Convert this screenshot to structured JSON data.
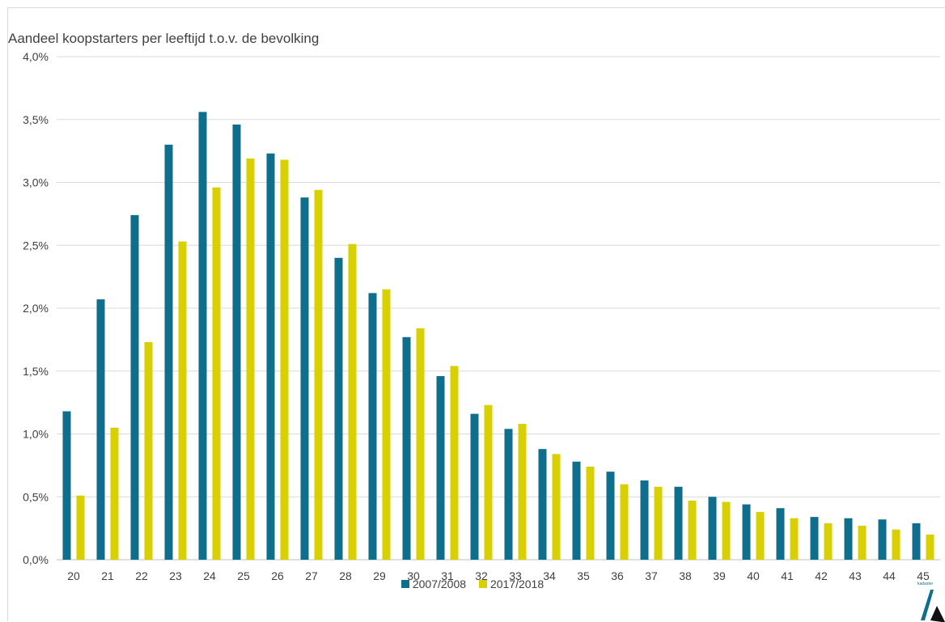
{
  "chart_data": {
    "type": "bar",
    "title": "Aandeel koopstarters per leeftijd t.o.v. de bevolking",
    "xlabel": "",
    "ylabel": "",
    "categories": [
      "20",
      "21",
      "22",
      "23",
      "24",
      "25",
      "26",
      "27",
      "28",
      "29",
      "30",
      "31",
      "32",
      "33",
      "34",
      "35",
      "36",
      "37",
      "38",
      "39",
      "40",
      "41",
      "42",
      "43",
      "44",
      "45"
    ],
    "y_ticks": [
      "0,0%",
      "0,5%",
      "1,0%",
      "1,5%",
      "2,0%",
      "2,5%",
      "3,0%",
      "3,5%",
      "4,0%"
    ],
    "ylim": [
      0,
      4.0
    ],
    "grid": true,
    "legend_position": "bottom",
    "series": [
      {
        "name": "2007/2008",
        "color": "#0e6e8c",
        "values": [
          1.18,
          2.07,
          2.74,
          3.3,
          3.56,
          3.46,
          3.23,
          2.88,
          2.4,
          2.12,
          1.77,
          1.46,
          1.16,
          1.04,
          0.88,
          0.78,
          0.7,
          0.63,
          0.58,
          0.5,
          0.44,
          0.41,
          0.34,
          0.33,
          0.32,
          0.29
        ]
      },
      {
        "name": "2017/2018",
        "color": "#d8d000",
        "values": [
          0.51,
          1.05,
          1.73,
          2.53,
          2.96,
          3.19,
          3.18,
          2.94,
          2.51,
          2.15,
          1.84,
          1.54,
          1.23,
          1.08,
          0.84,
          0.74,
          0.6,
          0.58,
          0.47,
          0.46,
          0.38,
          0.33,
          0.29,
          0.27,
          0.24,
          0.2
        ]
      }
    ]
  },
  "logo": {
    "text": "kadaster",
    "icon": "kadaster-logo-icon"
  }
}
